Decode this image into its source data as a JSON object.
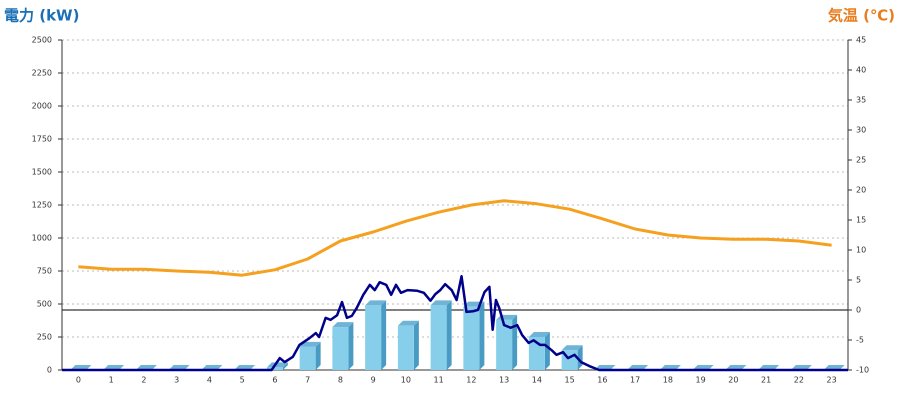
{
  "chart_data": {
    "type": "bar",
    "ylabel": "電力 (kW)",
    "y2label": "気温 (℃)",
    "categories": [
      "0",
      "1",
      "2",
      "3",
      "4",
      "5",
      "6",
      "7",
      "8",
      "9",
      "10",
      "11",
      "12",
      "13",
      "14",
      "15",
      "16",
      "17",
      "18",
      "19",
      "20",
      "21",
      "22",
      "23"
    ],
    "xlim": [
      -0.5,
      23.5
    ],
    "ylim": [
      0,
      2500
    ],
    "yticks": [
      0,
      250,
      500,
      750,
      1000,
      1250,
      1500,
      1750,
      2000,
      2250,
      2500
    ],
    "y2lim": [
      -10,
      45
    ],
    "y2ticks": [
      -10,
      -5,
      0,
      5,
      10,
      15,
      20,
      25,
      30,
      35,
      40,
      45
    ],
    "grid": true,
    "series": [
      {
        "type": "bar",
        "color": "#87ceeb",
        "values": [
          0,
          0,
          0,
          0,
          0,
          0,
          20,
          175,
          325,
          490,
          335,
          490,
          480,
          380,
          250,
          150,
          0,
          0,
          0,
          0,
          0,
          0,
          0,
          0
        ]
      },
      {
        "type": "line",
        "color": "#00008b",
        "x": [
          -0.5,
          5.9,
          6.15,
          6.3,
          6.55,
          6.75,
          7.05,
          7.25,
          7.35,
          7.55,
          7.7,
          7.9,
          8.05,
          8.2,
          8.35,
          8.5,
          8.7,
          8.9,
          9.05,
          9.2,
          9.4,
          9.55,
          9.7,
          9.85,
          10.05,
          10.35,
          10.55,
          10.75,
          10.9,
          11.05,
          11.2,
          11.4,
          11.55,
          11.7,
          11.85,
          12.05,
          12.2,
          12.4,
          12.55,
          12.65,
          12.75,
          12.85,
          13.0,
          13.2,
          13.4,
          13.55,
          13.75,
          13.9,
          14.1,
          14.25,
          14.45,
          14.6,
          14.8,
          14.95,
          15.15,
          15.35,
          15.6,
          15.9,
          23.5
        ],
        "values": [
          0,
          0,
          90,
          60,
          100,
          190,
          240,
          280,
          250,
          395,
          380,
          415,
          515,
          395,
          410,
          470,
          570,
          645,
          605,
          665,
          645,
          570,
          645,
          585,
          605,
          600,
          585,
          525,
          575,
          605,
          650,
          605,
          530,
          710,
          440,
          445,
          455,
          590,
          630,
          305,
          530,
          470,
          340,
          320,
          340,
          265,
          205,
          225,
          190,
          190,
          150,
          115,
          135,
          90,
          115,
          60,
          30,
          0,
          0
        ]
      },
      {
        "type": "line",
        "axis": "y2",
        "color": "#f5a01e",
        "values": [
          7.2,
          6.8,
          6.8,
          6.5,
          6.3,
          5.8,
          6.7,
          8.5,
          11.5,
          13,
          14.8,
          16.3,
          17.5,
          18.2,
          17.7,
          16.8,
          15.2,
          13.5,
          12.5,
          12,
          11.8,
          11.8,
          11.5,
          10.8
        ]
      }
    ]
  }
}
